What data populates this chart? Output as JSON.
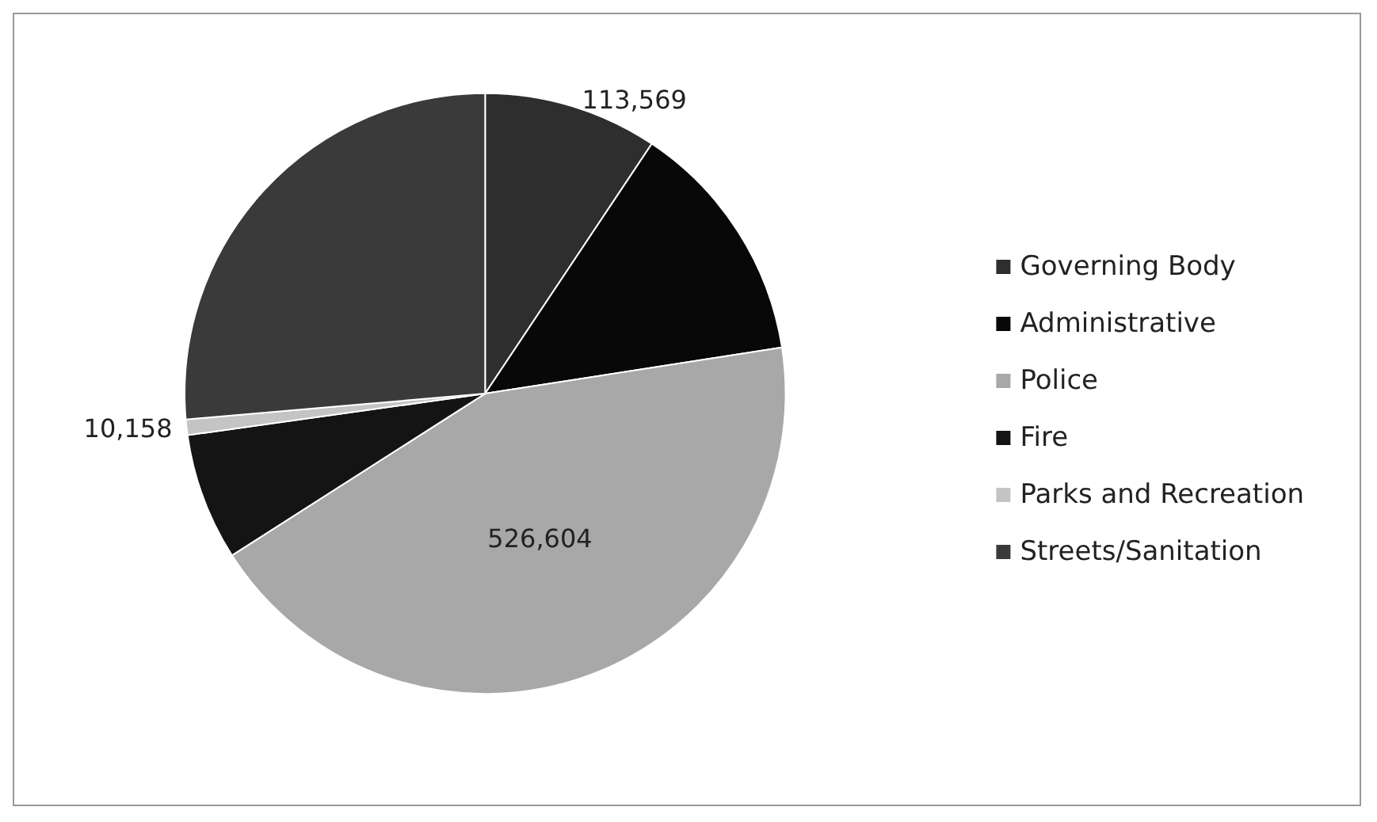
{
  "chart_data": {
    "type": "pie",
    "categories": [
      "Governing Body",
      "Administrative",
      "Police",
      "Fire",
      "Parks and Recreation",
      "Streets/Sanitation"
    ],
    "values": [
      113569,
      160000,
      526604,
      83000,
      10158,
      320000
    ],
    "value_labels": [
      "113,569",
      null,
      "526,604",
      null,
      "10,158",
      null
    ],
    "colors": [
      "#2e2e2e",
      "#080808",
      "#a8a8a8",
      "#141414",
      "#c4c4c4",
      "#3a3a3a"
    ],
    "legend": "right"
  }
}
